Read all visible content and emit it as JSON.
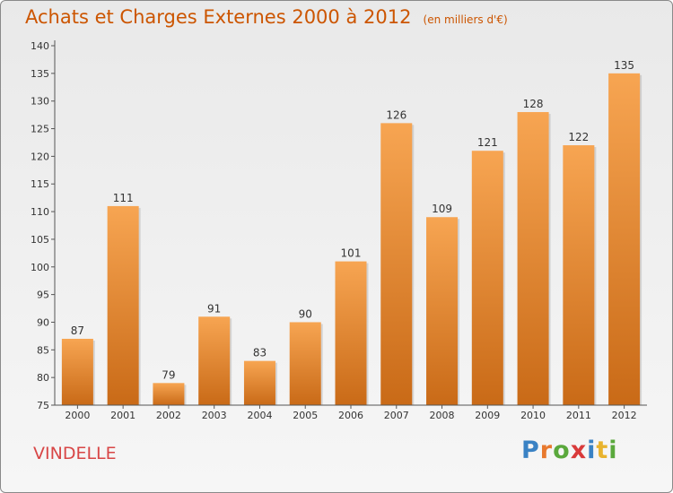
{
  "header": {
    "title": "Achats et Charges Externes 2000 à 2012",
    "subtitle": "(en milliers d'€)"
  },
  "footer": {
    "commune": "VINDELLE",
    "logo_letters": [
      "P",
      "r",
      "o",
      "x",
      "i",
      "t",
      "i"
    ],
    "logo_colors": [
      "#3a82c4",
      "#e8792e",
      "#5aa83c",
      "#d93a3a",
      "#3a82c4",
      "#e8b32e",
      "#5aa83c"
    ]
  },
  "chart_data": {
    "type": "bar",
    "title": "Achats et Charges Externes 2000 à 2012",
    "subtitle": "(en milliers d'€)",
    "categories": [
      "2000",
      "2001",
      "2002",
      "2003",
      "2004",
      "2005",
      "2006",
      "2007",
      "2008",
      "2009",
      "2010",
      "2011",
      "2012"
    ],
    "values": [
      87,
      111,
      79,
      91,
      83,
      90,
      101,
      126,
      109,
      121,
      128,
      122,
      135
    ],
    "ylim": [
      75,
      140
    ],
    "yticks": [
      75,
      80,
      85,
      90,
      95,
      100,
      105,
      110,
      115,
      120,
      125,
      130,
      135,
      140
    ],
    "bar_color_top": "#f7a552",
    "bar_color_bottom": "#c96a17",
    "grid": false,
    "legend": "none"
  }
}
